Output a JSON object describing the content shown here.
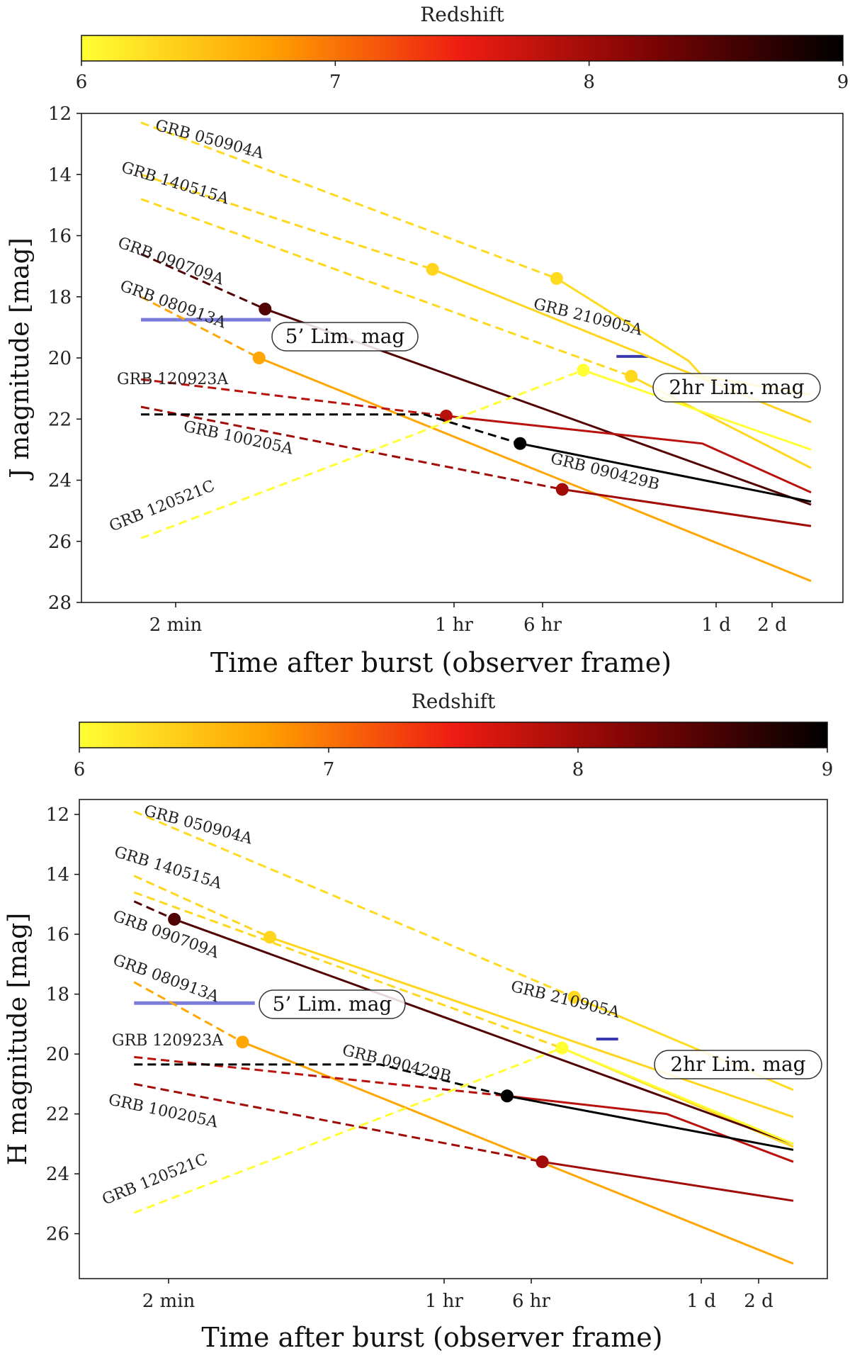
{
  "chart_data": [
    {
      "type": "line",
      "panel": "top",
      "ylabel": "J magnitude [mag]",
      "xlabel": "Time after burst (observer frame)",
      "ylim": [
        28,
        12
      ],
      "x_scale": "log",
      "x_ticks": [
        "2 min",
        "1 hr",
        "6 hr",
        "1 d",
        "2 d"
      ],
      "y_ticks": [
        "12",
        "14",
        "16",
        "18",
        "20",
        "22",
        "24",
        "26",
        "28"
      ],
      "colorbar": {
        "label": "Redshift",
        "ticks": [
          "6",
          "7",
          "8",
          "9"
        ],
        "range": [
          6,
          9
        ],
        "colors": [
          "#ffff33",
          "#ffa000",
          "#ee1c12",
          "#7a0404",
          "#000000"
        ]
      },
      "series": [
        {
          "name": "GRB 050904A",
          "label": "GRB 050904A",
          "redshift": 6.29,
          "dashed": [
            [
              75,
              12.3
            ],
            [
              5.2,
              17.4
            ]
          ],
          "solid": [
            [
              5.2,
              17.4
            ],
            [
              30,
              20.1
            ],
            [
              36,
              20.6
            ],
            [
              50,
              21.2
            ]
          ],
          "marker": [
            5.2,
            17.4
          ]
        },
        {
          "name": "GRB 140515A",
          "label": "GRB 140515A",
          "redshift": 6.33,
          "dashed": [
            [
              75,
              14.0
            ],
            [
              1.0,
              17.1
            ]
          ],
          "solid": [
            [
              1.0,
              17.1
            ],
            [
              15,
              19.8
            ],
            [
              50,
              22.1
            ]
          ],
          "marker": [
            1.0,
            17.1
          ]
        },
        {
          "name": "GRB 210905A",
          "label": "GRB 210905A",
          "redshift": 6.31,
          "dashed": [
            [
              75,
              14.8
            ],
            [
              14,
              20.6
            ]
          ],
          "solid": [
            [
              14,
              20.6
            ],
            [
              50,
              23.6
            ]
          ],
          "marker": [
            14,
            20.6
          ]
        },
        {
          "name": "GRB 090709A",
          "label": "GRB 090709A",
          "redshift": 8.5,
          "dashed": [
            [
              75,
              16.6
            ],
            [
              390,
              18.4
            ]
          ],
          "solid": [
            [
              390,
              18.4
            ],
            [
              50,
              24.8
            ]
          ],
          "marker": [
            390,
            18.4
          ]
        },
        {
          "name": "GRB 080913A",
          "label": "GRB 080913A",
          "redshift": 6.7,
          "dashed": [
            [
              75,
              18.0
            ],
            [
              360,
              20.0
            ]
          ],
          "solid": [
            [
              360,
              20.0
            ],
            [
              50,
              27.3
            ]
          ],
          "marker": [
            360,
            20.0
          ]
        },
        {
          "name": "GRB 120923A",
          "label": "GRB 120923A",
          "redshift": 7.84,
          "dashed": [
            [
              75,
              20.7
            ],
            [
              1.2,
              21.9
            ]
          ],
          "solid": [
            [
              1.2,
              21.9
            ],
            [
              36,
              22.8
            ],
            [
              50,
              24.4
            ]
          ],
          "marker": [
            1.2,
            21.9
          ]
        },
        {
          "name": "GRB 100205A",
          "label": "GRB 100205A",
          "redshift": 8.0,
          "dashed": [
            [
              75,
              21.6
            ],
            [
              5.6,
              24.3
            ]
          ],
          "solid": [
            [
              5.6,
              24.3
            ],
            [
              50,
              25.5
            ]
          ],
          "marker": [
            5.6,
            24.3
          ]
        },
        {
          "name": "GRB 090429B",
          "label": "GRB 090429B",
          "redshift": 9.4,
          "dashed": [
            [
              75,
              21.85
            ],
            [
              0.9,
              21.85
            ],
            [
              3.2,
              22.8
            ]
          ],
          "solid": [
            [
              3.2,
              22.8
            ],
            [
              50,
              24.7
            ]
          ],
          "marker": [
            3.2,
            22.8
          ]
        },
        {
          "name": "GRB 120521C",
          "label": "GRB 120521C",
          "redshift": 6.0,
          "dashed": [
            [
              75,
              25.9
            ],
            [
              7.4,
              20.4
            ]
          ],
          "solid": [
            [
              7.4,
              20.4
            ],
            [
              50,
              23.0
            ]
          ],
          "marker": [
            7.4,
            20.4
          ]
        }
      ],
      "limits": [
        {
          "label": "5’ Lim. mag",
          "mag": 18.75,
          "from": 75,
          "to": 420
        },
        {
          "label": "2hr Lim. mag",
          "mag": 19.95,
          "from": 11.5,
          "to": 17.5
        }
      ]
    },
    {
      "type": "line",
      "panel": "bottom",
      "ylabel": "H magnitude [mag]",
      "xlabel": "Time after burst (observer frame)",
      "ylim": [
        27.5,
        11.5
      ],
      "x_scale": "log",
      "x_ticks": [
        "2 min",
        "1 hr",
        "6 hr",
        "1 d",
        "2 d"
      ],
      "y_ticks": [
        "12",
        "14",
        "16",
        "18",
        "20",
        "22",
        "24",
        "26"
      ],
      "colorbar": {
        "label": "Redshift",
        "ticks": [
          "6",
          "7",
          "8",
          "9"
        ],
        "range": [
          6,
          9
        ],
        "colors": [
          "#ffff33",
          "#ffa000",
          "#ee1c12",
          "#7a0404",
          "#000000"
        ]
      },
      "series": [
        {
          "name": "GRB 050904A",
          "label": "GRB 050904A",
          "redshift": 6.29,
          "dashed": [
            [
              75,
              11.9
            ],
            [
              8.5,
              18.1
            ]
          ],
          "solid": [
            [
              8.5,
              18.1
            ],
            [
              50,
              21.2
            ]
          ],
          "marker": [
            8.5,
            18.1
          ]
        },
        {
          "name": "GRB 140515A",
          "label": "GRB 140515A",
          "redshift": 6.33,
          "dashed": [
            [
              75,
              14.05
            ],
            [
              480,
              16.1
            ]
          ],
          "solid": [
            [
              480,
              16.1
            ],
            [
              50,
              22.1
            ]
          ],
          "marker": [
            480,
            16.1
          ]
        },
        {
          "name": "GRB 210905A",
          "label": "GRB 210905A",
          "redshift": 6.31,
          "dashed": [
            [
              75,
              14.6
            ],
            [
              7.2,
              19.8
            ]
          ],
          "solid": [
            [
              7.2,
              19.8
            ],
            [
              50,
              23.1
            ]
          ],
          "marker": [
            7.2,
            19.8
          ]
        },
        {
          "name": "GRB 090709A",
          "label": "GRB 090709A",
          "redshift": 8.5,
          "dashed": [
            [
              75,
              14.9
            ],
            [
              130,
              15.5
            ]
          ],
          "solid": [
            [
              130,
              15.5
            ],
            [
              50,
              23.0
            ]
          ],
          "marker": [
            130,
            15.5
          ]
        },
        {
          "name": "GRB 080913A",
          "label": "GRB 080913A",
          "redshift": 6.7,
          "dashed": [
            [
              75,
              17.6
            ],
            [
              330,
              19.6
            ]
          ],
          "solid": [
            [
              330,
              19.6
            ],
            [
              50,
              27.0
            ]
          ],
          "marker": [
            330,
            19.6
          ]
        },
        {
          "name": "GRB 120923A",
          "label": "GRB 120923A",
          "redshift": 7.84,
          "dashed": [
            [
              75,
              20.1
            ],
            [
              3.4,
              21.4
            ]
          ],
          "solid": [
            [
              3.4,
              21.4
            ],
            [
              30,
              22.0
            ],
            [
              50,
              23.6
            ]
          ],
          "marker": [
            3.4,
            21.4
          ]
        },
        {
          "name": "GRB 100205A",
          "label": "GRB 100205A",
          "redshift": 8.0,
          "dashed": [
            [
              75,
              21.0
            ],
            [
              5.5,
              23.6
            ]
          ],
          "solid": [
            [
              5.5,
              23.6
            ],
            [
              50,
              24.9
            ]
          ],
          "marker": [
            5.5,
            23.6
          ]
        },
        {
          "name": "GRB 090429B",
          "label": "GRB 090429B",
          "redshift": 9.4,
          "dashed": [
            [
              75,
              20.35
            ],
            [
              0.6,
              20.35
            ],
            [
              3.4,
              21.4
            ]
          ],
          "solid": [
            [
              3.4,
              21.4
            ],
            [
              50,
              23.2
            ]
          ],
          "marker": [
            3.4,
            21.4
          ]
        },
        {
          "name": "GRB 120521C",
          "label": "GRB 120521C",
          "redshift": 6.0,
          "dashed": [
            [
              75,
              25.3
            ],
            [
              7.2,
              19.8
            ]
          ],
          "solid": [
            [
              7.2,
              19.8
            ],
            [
              50,
              23.0
            ]
          ],
          "marker": [
            7.2,
            19.8
          ]
        }
      ],
      "limits": [
        {
          "label": "5’ Lim. mag",
          "mag": 18.3,
          "from": 75,
          "to": 390
        },
        {
          "label": "2hr Lim. mag",
          "mag": 19.5,
          "from": 11.5,
          "to": 15.5
        }
      ]
    }
  ]
}
